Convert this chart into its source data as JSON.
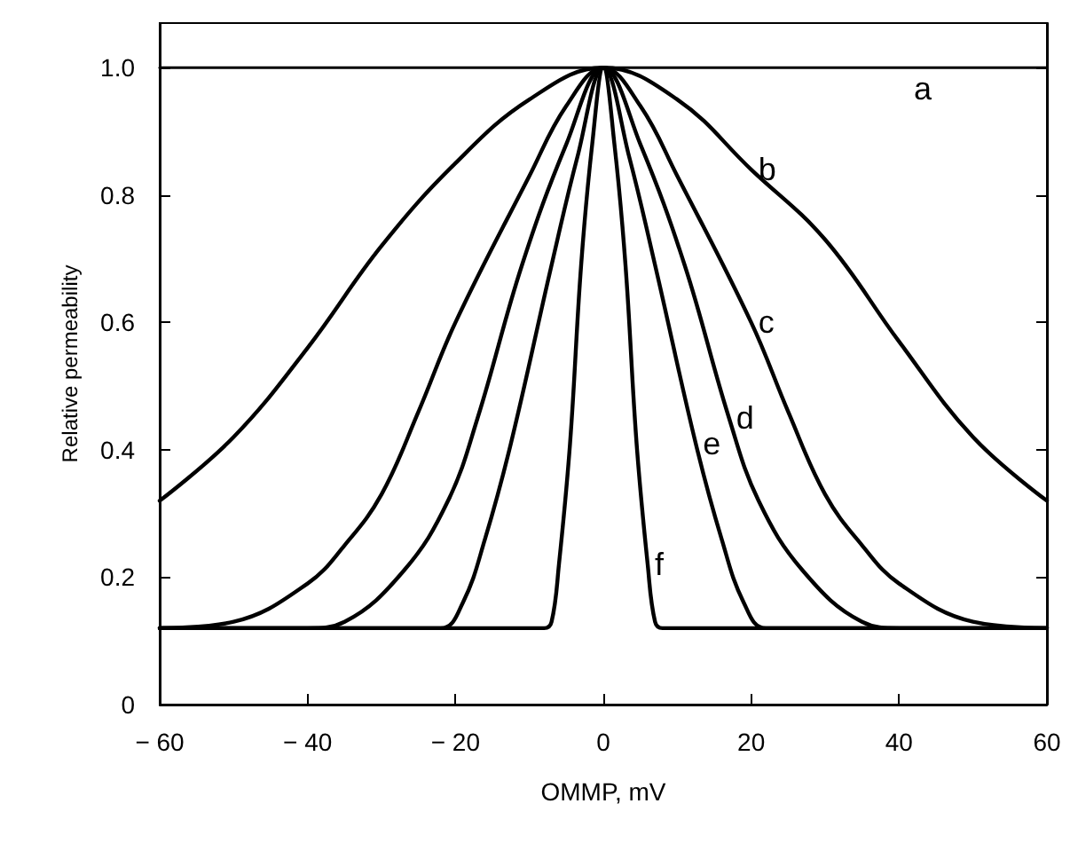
{
  "chart_data": {
    "type": "line",
    "xlabel": "OMMP, mV",
    "ylabel": "Relative permeability",
    "xlim": [
      -60,
      60
    ],
    "ylim": [
      0,
      1.07
    ],
    "xticks": [
      -60,
      -40,
      -20,
      0,
      20,
      40,
      60
    ],
    "yticks": [
      0,
      0.2,
      0.4,
      0.6,
      0.8,
      {
        "value": 1,
        "label": "1.0"
      }
    ],
    "grid": false,
    "legend": false,
    "marker": "none",
    "line_style": "solid",
    "series": [
      {
        "name": "a",
        "color": "#000000",
        "x": [
          -60,
          0,
          60
        ],
        "values": [
          1,
          1,
          1
        ]
      },
      {
        "name": "b",
        "color": "#000000",
        "x": [
          -60,
          -50,
          -40,
          -30,
          -20,
          -10,
          0,
          10,
          20,
          30,
          40,
          50,
          60
        ],
        "values": [
          0.32,
          0.42,
          0.56,
          0.72,
          0.85,
          0.95,
          1,
          0.95,
          0.84,
          0.73,
          0.57,
          0.42,
          0.32
        ]
      },
      {
        "name": "c",
        "color": "#000000",
        "x": [
          -60,
          -50,
          -40,
          -35,
          -30,
          -25,
          -20,
          -10,
          -5,
          0,
          5,
          10,
          20,
          25,
          30,
          35,
          40,
          50,
          60
        ],
        "values": [
          0.12,
          0.13,
          0.19,
          0.25,
          0.33,
          0.46,
          0.6,
          0.83,
          0.94,
          1,
          0.94,
          0.83,
          0.6,
          0.46,
          0.33,
          0.25,
          0.19,
          0.13,
          0.12
        ]
      },
      {
        "name": "d",
        "color": "#000000",
        "x": [
          -60,
          -40,
          -35,
          -27,
          -21,
          -17,
          -11,
          -5,
          0,
          5,
          11,
          17,
          21,
          27,
          35,
          40,
          60
        ],
        "values": [
          0.12,
          0.12,
          0.13,
          0.21,
          0.32,
          0.45,
          0.69,
          0.88,
          1,
          0.88,
          0.69,
          0.45,
          0.32,
          0.21,
          0.13,
          0.12,
          0.12
        ]
      },
      {
        "name": "e",
        "color": "#000000",
        "x": [
          -60,
          -22,
          -19,
          -16,
          -12.5,
          -7,
          -3.5,
          0,
          3.5,
          7,
          12.5,
          16,
          19,
          22,
          60
        ],
        "values": [
          0.12,
          0.12,
          0.16,
          0.26,
          0.41,
          0.69,
          0.86,
          1,
          0.86,
          0.69,
          0.41,
          0.26,
          0.16,
          0.12,
          0.12
        ]
      },
      {
        "name": "f",
        "color": "#000000",
        "x": [
          -60,
          -8,
          -7,
          -6,
          -4.5,
          -3,
          -1.5,
          0,
          1.5,
          3,
          4.5,
          6,
          7,
          8,
          60
        ],
        "values": [
          0.12,
          0.12,
          0.13,
          0.22,
          0.41,
          0.69,
          0.88,
          1,
          0.88,
          0.69,
          0.41,
          0.22,
          0.13,
          0.12,
          0.12
        ]
      }
    ]
  }
}
